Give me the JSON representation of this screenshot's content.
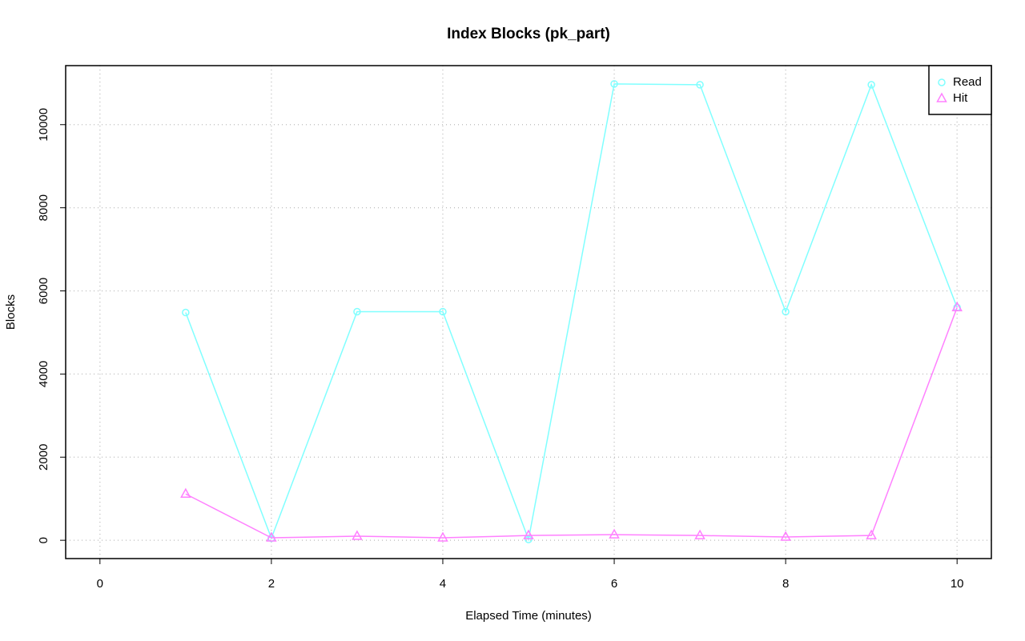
{
  "chart_data": {
    "type": "line",
    "title": "Index Blocks (pk_part)",
    "xlabel": "Elapsed Time (minutes)",
    "ylabel": "Blocks",
    "x": [
      1,
      2,
      3,
      4,
      5,
      6,
      7,
      8,
      9,
      10
    ],
    "series": [
      {
        "name": "Read",
        "color": "#80ffff",
        "marker": "circle",
        "values": [
          5480,
          50,
          5500,
          5500,
          20,
          10980,
          10960,
          5500,
          10960,
          5600
        ]
      },
      {
        "name": "Hit",
        "color": "#ff80ff",
        "marker": "triangle",
        "values": [
          1115,
          60,
          100,
          60,
          115,
          135,
          115,
          80,
          115,
          5600
        ]
      }
    ],
    "xlim": [
      -0.4,
      10.4
    ],
    "xticks": [
      0,
      2,
      4,
      6,
      8,
      10
    ],
    "ylim": [
      -440,
      11420
    ],
    "yticks": [
      0,
      2000,
      4000,
      6000,
      8000,
      10000
    ],
    "grid": true,
    "legend": "topright"
  }
}
